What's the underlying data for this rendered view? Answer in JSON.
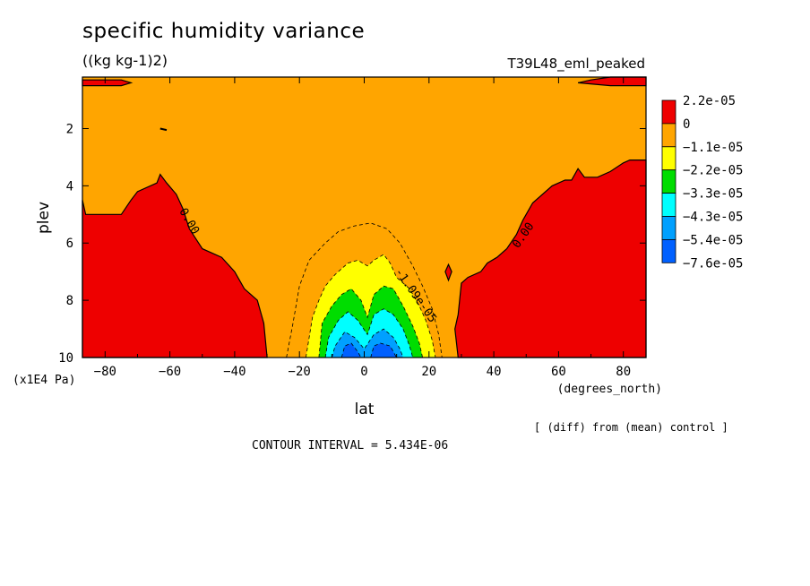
{
  "title": "specific humidity variance",
  "units": "((kg kg-1)2)",
  "experiment": "T39L48_eml_peaked",
  "footnote": "[ (diff) from (mean) control ]",
  "contour_interval_text": "CONTOUR INTERVAL = 5.434E-06",
  "colors": {
    "red": "#ee0000",
    "orange": "#ffa500",
    "yellow": "#ffff00",
    "green": "#00dd00",
    "cyan": "#00ffff",
    "lightblue": "#00a0ff",
    "blue": "#0060ff"
  },
  "chart_data": {
    "type": "heatmap",
    "xlabel": "lat",
    "xunits": "(degrees_north)",
    "ylabel": "plev",
    "yunits": "(x1E4 Pa)",
    "xlim": [
      -87,
      87
    ],
    "ylim": [
      10,
      0.2
    ],
    "xticks": [
      -80,
      -60,
      -40,
      -20,
      0,
      20,
      40,
      60,
      80
    ],
    "yticks": [
      2,
      4,
      6,
      8,
      10
    ],
    "legend": {
      "placement": "right",
      "labels": [
        "2.2e-05",
        "0",
        "-1.1e-05",
        "-2.2e-05",
        "-3.3e-05",
        "-4.3e-05",
        "-5.4e-05",
        "-7.6e-05"
      ],
      "colors": [
        "#ee0000",
        "#ffa500",
        "#ffff00",
        "#00dd00",
        "#00ffff",
        "#00a0ff",
        "#0060ff"
      ]
    },
    "contour_labels": [
      {
        "text": "0.00",
        "lat": -55,
        "plev": 5.3
      },
      {
        "text": "0.00",
        "lat": 50,
        "plev": 5.8
      },
      {
        "text": "-1.09e-05",
        "lat": 15,
        "plev": 7.9
      }
    ],
    "regions": [
      {
        "level": "red",
        "points": [
          [
            -87,
            4.5
          ],
          [
            -86,
            5.0
          ],
          [
            -75,
            5.0
          ],
          [
            -72,
            4.5
          ],
          [
            -70,
            4.2
          ],
          [
            -64,
            3.9
          ],
          [
            -63,
            3.6
          ],
          [
            -61,
            3.9
          ],
          [
            -58,
            4.3
          ],
          [
            -56,
            4.8
          ],
          [
            -54,
            5.5
          ],
          [
            -50,
            6.2
          ],
          [
            -44,
            6.5
          ],
          [
            -40,
            7.0
          ],
          [
            -37,
            7.6
          ],
          [
            -33,
            8.0
          ],
          [
            -31,
            8.8
          ],
          [
            -30,
            10
          ],
          [
            -87,
            10
          ]
        ]
      },
      {
        "level": "red",
        "points": [
          [
            87,
            3.1
          ],
          [
            82,
            3.1
          ],
          [
            80,
            3.2
          ],
          [
            76,
            3.5
          ],
          [
            72,
            3.7
          ],
          [
            68,
            3.7
          ],
          [
            66,
            3.4
          ],
          [
            64,
            3.8
          ],
          [
            62,
            3.8
          ],
          [
            58,
            4.0
          ],
          [
            52,
            4.6
          ],
          [
            49,
            5.2
          ],
          [
            47,
            5.7
          ],
          [
            44,
            6.2
          ],
          [
            41,
            6.5
          ],
          [
            38,
            6.7
          ],
          [
            36,
            7.0
          ],
          [
            32,
            7.2
          ],
          [
            30,
            7.4
          ],
          [
            29,
            8.5
          ],
          [
            28,
            9.0
          ],
          [
            29,
            10
          ],
          [
            87,
            10
          ]
        ]
      },
      {
        "level": "red",
        "points": [
          [
            -87,
            0.3
          ],
          [
            -75,
            0.3
          ],
          [
            -72,
            0.4
          ],
          [
            -75,
            0.5
          ],
          [
            -87,
            0.5
          ]
        ]
      },
      {
        "level": "red",
        "points": [
          [
            87,
            0.2
          ],
          [
            76,
            0.2
          ],
          [
            70,
            0.3
          ],
          [
            66,
            0.4
          ],
          [
            76,
            0.5
          ],
          [
            87,
            0.5
          ]
        ]
      },
      {
        "level": "red",
        "points": [
          [
            25,
            7.0
          ],
          [
            26,
            6.75
          ],
          [
            27,
            7.0
          ],
          [
            26,
            7.3
          ]
        ]
      },
      {
        "level": "yellow",
        "points": [
          [
            -18,
            10
          ],
          [
            -16,
            8.6
          ],
          [
            -14,
            8.0
          ],
          [
            -12,
            7.5
          ],
          [
            -9,
            7.1
          ],
          [
            -5,
            6.7
          ],
          [
            -2,
            6.6
          ],
          [
            1,
            6.8
          ],
          [
            3,
            6.6
          ],
          [
            6,
            6.4
          ],
          [
            8,
            6.7
          ],
          [
            10,
            7.2
          ],
          [
            14,
            7.6
          ],
          [
            17,
            8.2
          ],
          [
            19,
            8.7
          ],
          [
            21,
            9.4
          ],
          [
            22,
            10
          ]
        ]
      },
      {
        "level": "green",
        "points": [
          [
            -14,
            10
          ],
          [
            -13,
            8.8
          ],
          [
            -10,
            8.2
          ],
          [
            -7,
            7.8
          ],
          [
            -4,
            7.6
          ],
          [
            -1,
            8.0
          ],
          [
            1,
            8.6
          ],
          [
            3,
            7.8
          ],
          [
            6,
            7.5
          ],
          [
            9,
            7.6
          ],
          [
            12,
            8.2
          ],
          [
            15,
            8.9
          ],
          [
            17,
            9.5
          ],
          [
            18,
            10
          ]
        ]
      },
      {
        "level": "cyan",
        "points": [
          [
            -12,
            10
          ],
          [
            -11,
            9.3
          ],
          [
            -8,
            8.7
          ],
          [
            -5,
            8.4
          ],
          [
            -2,
            8.7
          ],
          [
            1,
            9.2
          ],
          [
            3,
            8.5
          ],
          [
            6,
            8.3
          ],
          [
            9,
            8.5
          ],
          [
            12,
            9.0
          ],
          [
            14,
            9.6
          ],
          [
            15,
            10
          ]
        ]
      },
      {
        "level": "lightblue",
        "points": [
          [
            -10,
            10
          ],
          [
            -9,
            9.6
          ],
          [
            -6,
            9.1
          ],
          [
            -3,
            9.3
          ],
          [
            0,
            9.7
          ],
          [
            3,
            9.2
          ],
          [
            6,
            9.0
          ],
          [
            9,
            9.3
          ],
          [
            11,
            9.7
          ],
          [
            12,
            10
          ]
        ]
      },
      {
        "level": "blue",
        "points": [
          [
            -7,
            10
          ],
          [
            -6,
            9.6
          ],
          [
            -4,
            9.5
          ],
          [
            -2,
            9.8
          ],
          [
            -1,
            10
          ]
        ]
      },
      {
        "level": "blue",
        "points": [
          [
            2,
            10
          ],
          [
            3,
            9.6
          ],
          [
            5,
            9.5
          ],
          [
            8,
            9.6
          ],
          [
            10,
            10
          ]
        ]
      }
    ]
  }
}
